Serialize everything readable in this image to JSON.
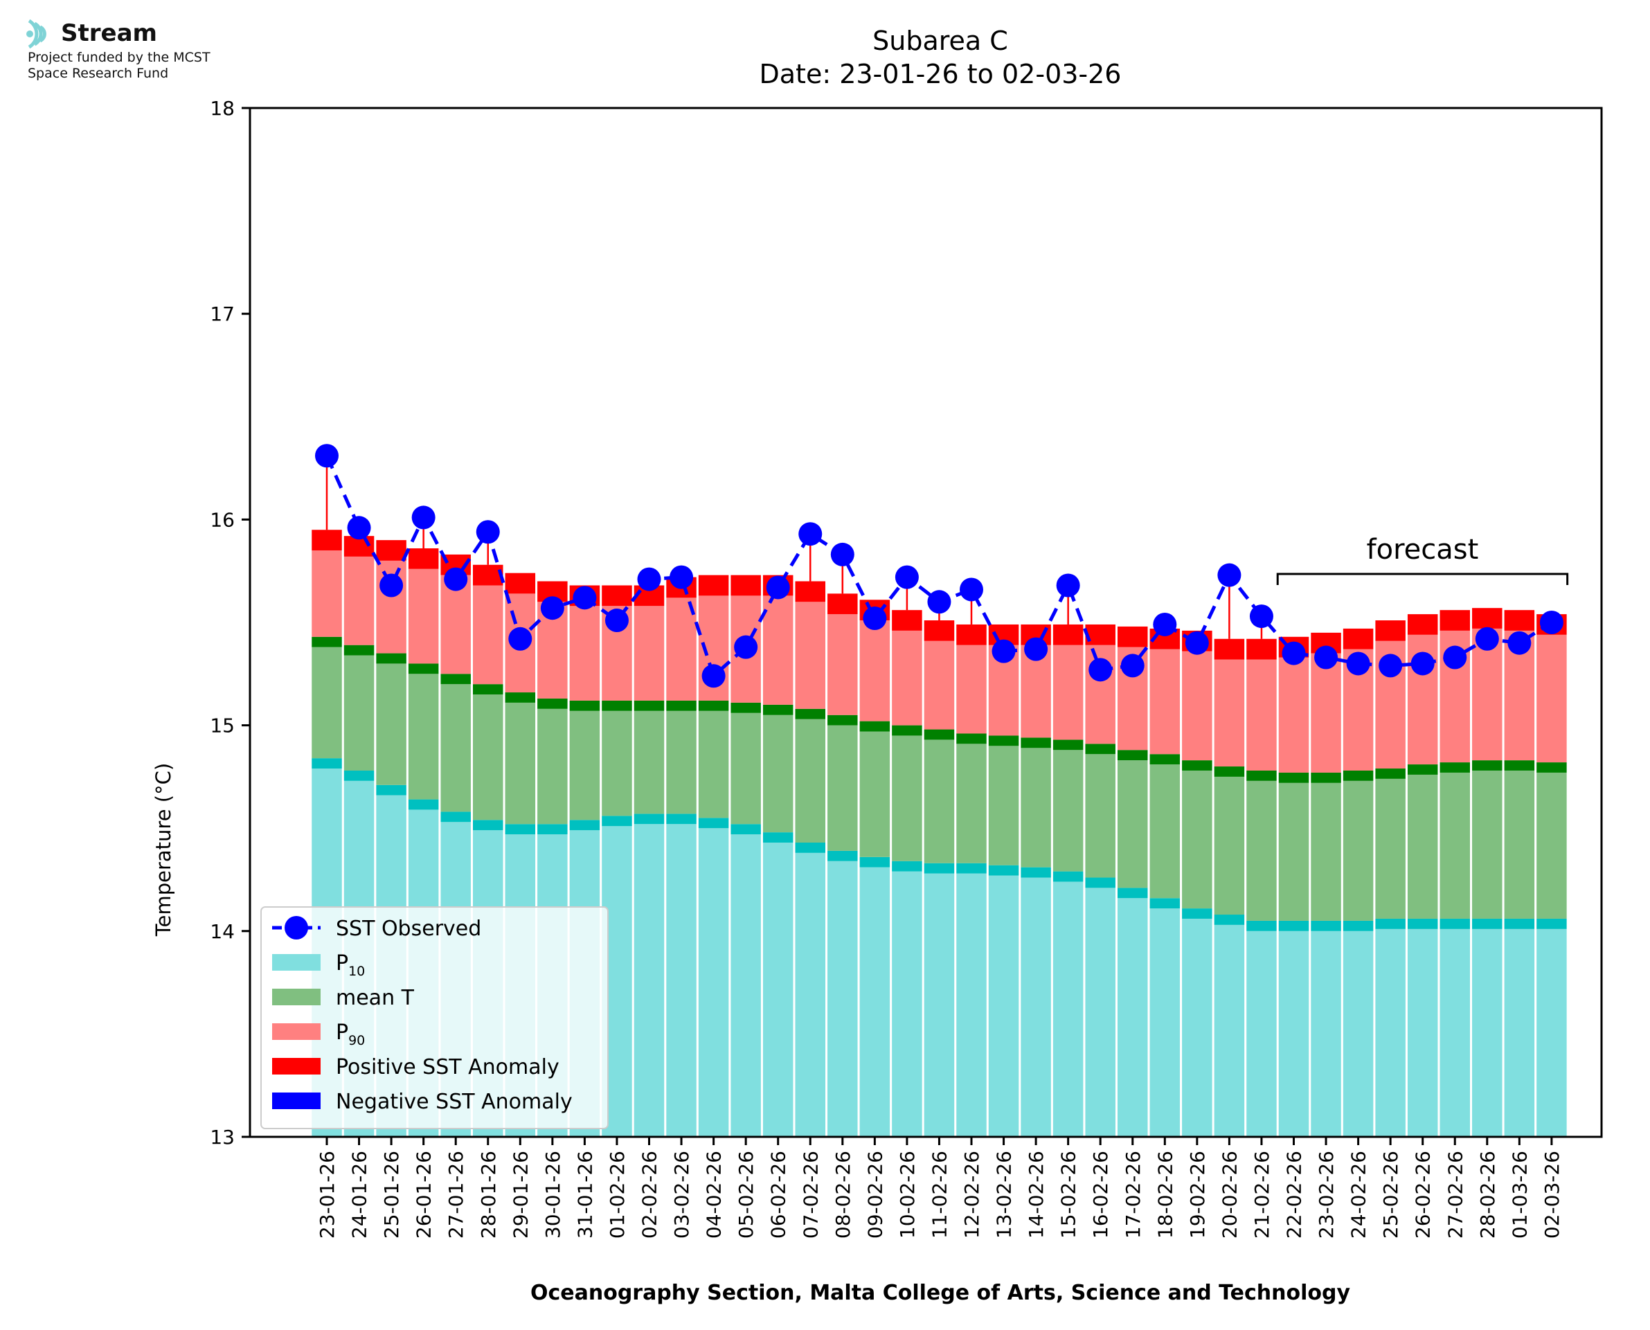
{
  "logo": {
    "name": "Stream",
    "line1": "Project funded by the MCST",
    "line2": "Space Research Fund",
    "color": "#7fd3d6"
  },
  "chart_data": {
    "type": "bar",
    "title": "Subarea C",
    "subtitle": "Date: 23-01-26 to 02-03-26",
    "xlabel": "Oceanography Section, Malta College of Arts, Science and Technology",
    "ylabel": "Temperature (°C)",
    "ylim": [
      13,
      18
    ],
    "yticks": [
      "13",
      "14",
      "15",
      "16",
      "17",
      "18"
    ],
    "grid": false,
    "legend_position": "lower-left",
    "categories": [
      "23-01-26",
      "24-01-26",
      "25-01-26",
      "26-01-26",
      "27-01-26",
      "28-01-26",
      "29-01-26",
      "30-01-26",
      "31-01-26",
      "01-02-26",
      "02-02-26",
      "03-02-26",
      "04-02-26",
      "05-02-26",
      "06-02-26",
      "07-02-26",
      "08-02-26",
      "09-02-26",
      "10-02-26",
      "11-02-26",
      "12-02-26",
      "13-02-26",
      "14-02-26",
      "15-02-26",
      "16-02-26",
      "17-02-26",
      "18-02-26",
      "19-02-26",
      "20-02-26",
      "21-02-26",
      "22-02-26",
      "23-02-26",
      "24-02-26",
      "25-02-26",
      "26-02-26",
      "27-02-26",
      "28-02-26",
      "01-03-26",
      "02-03-26"
    ],
    "series": [
      {
        "name": "P10",
        "color": "#80dfdf",
        "band_color": "#00c0c0",
        "values": [
          14.84,
          14.78,
          14.71,
          14.64,
          14.58,
          14.54,
          14.52,
          14.52,
          14.54,
          14.56,
          14.57,
          14.57,
          14.55,
          14.52,
          14.48,
          14.43,
          14.39,
          14.36,
          14.34,
          14.33,
          14.33,
          14.32,
          14.31,
          14.29,
          14.26,
          14.21,
          14.16,
          14.11,
          14.08,
          14.05,
          14.05,
          14.05,
          14.05,
          14.06,
          14.06,
          14.06,
          14.06,
          14.06,
          14.06
        ]
      },
      {
        "name": "mean T",
        "color": "#80bf80",
        "band_color": "#008000",
        "values": [
          15.43,
          15.39,
          15.35,
          15.3,
          15.25,
          15.2,
          15.16,
          15.13,
          15.12,
          15.12,
          15.12,
          15.12,
          15.12,
          15.11,
          15.1,
          15.08,
          15.05,
          15.02,
          15.0,
          14.98,
          14.96,
          14.95,
          14.94,
          14.93,
          14.91,
          14.88,
          14.86,
          14.83,
          14.8,
          14.78,
          14.77,
          14.77,
          14.78,
          14.79,
          14.81,
          14.82,
          14.83,
          14.83,
          14.82
        ]
      },
      {
        "name": "P90",
        "color": "#ff8080",
        "band_color": "#ff0000",
        "values": [
          15.95,
          15.92,
          15.9,
          15.86,
          15.83,
          15.78,
          15.74,
          15.7,
          15.68,
          15.68,
          15.68,
          15.72,
          15.73,
          15.73,
          15.73,
          15.7,
          15.64,
          15.61,
          15.56,
          15.51,
          15.49,
          15.49,
          15.49,
          15.49,
          15.49,
          15.48,
          15.47,
          15.46,
          15.42,
          15.42,
          15.43,
          15.45,
          15.47,
          15.51,
          15.54,
          15.56,
          15.57,
          15.56,
          15.54
        ]
      },
      {
        "name": "SST Observed",
        "color": "#0000ff",
        "values": [
          16.31,
          15.96,
          15.68,
          16.01,
          15.71,
          15.94,
          15.42,
          15.57,
          15.62,
          15.51,
          15.71,
          15.72,
          15.24,
          15.38,
          15.67,
          15.93,
          15.83,
          15.52,
          15.72,
          15.6,
          15.66,
          15.36,
          15.37,
          15.68,
          15.27,
          15.29,
          15.49,
          15.4,
          15.73,
          15.53,
          15.35,
          15.33,
          15.3,
          15.29,
          15.3,
          15.33,
          15.42,
          15.4,
          15.5
        ]
      }
    ],
    "anomaly_colors": {
      "positive": "#ff0000",
      "negative": "#0000ff"
    },
    "legend": [
      {
        "kind": "line",
        "label": "SST Observed",
        "color": "#0000ff"
      },
      {
        "kind": "patch",
        "label": "P",
        "sub": "10",
        "color": "#80dfdf"
      },
      {
        "kind": "patch",
        "label": "mean T",
        "sub": "",
        "color": "#80bf80"
      },
      {
        "kind": "patch",
        "label": "P",
        "sub": "90",
        "color": "#ff8080"
      },
      {
        "kind": "patch",
        "label": "Positive SST Anomaly",
        "sub": "",
        "color": "#ff0000"
      },
      {
        "kind": "patch",
        "label": "Negative SST Anomaly",
        "sub": "",
        "color": "#0000ff"
      }
    ],
    "annotation": {
      "label": "forecast",
      "from_category": "21-02-26",
      "to_category": "02-03-26"
    }
  }
}
